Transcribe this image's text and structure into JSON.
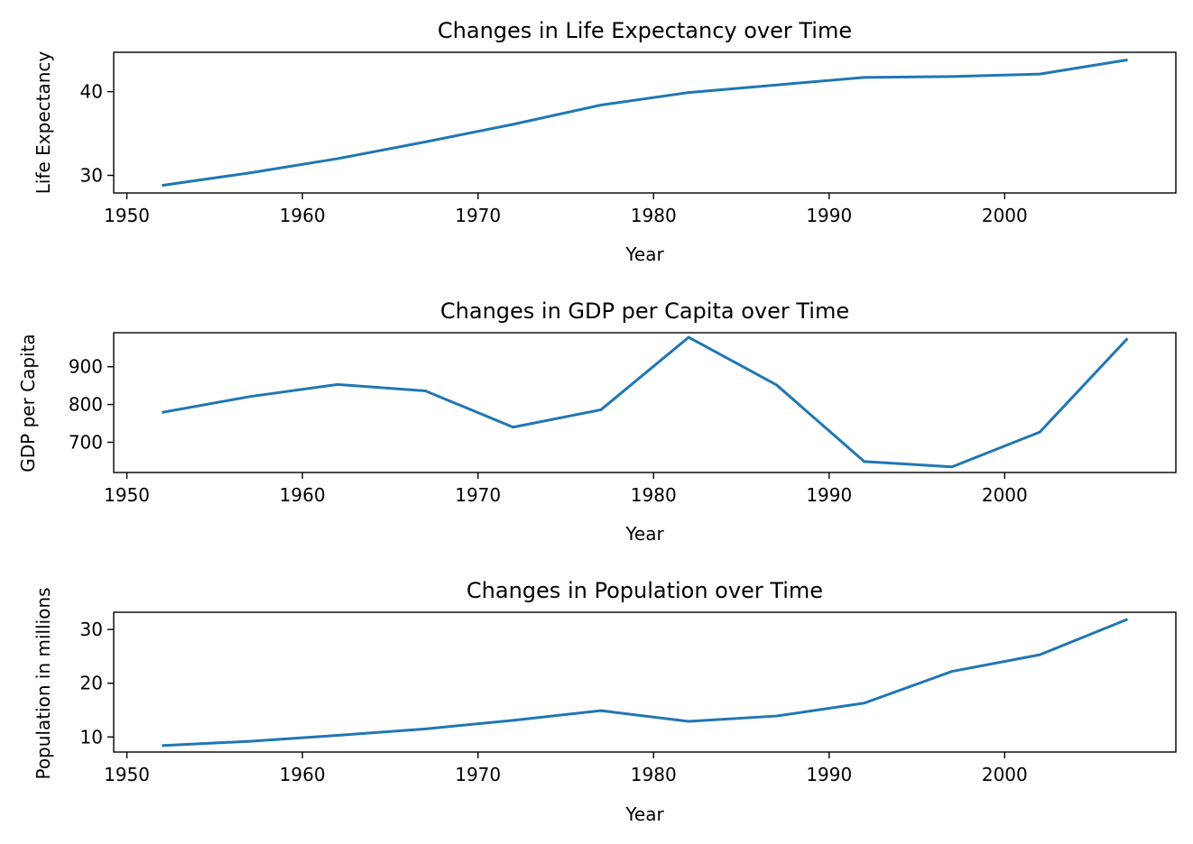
{
  "chart_data": [
    {
      "type": "line",
      "title": "Changes in Life Expectancy over Time",
      "xlabel": "Year",
      "ylabel": "Life Expectancy",
      "xlim": [
        1949.25,
        2009.75
      ],
      "ylim": [
        27.9,
        44.7
      ],
      "xticks": [
        1950,
        1960,
        1970,
        1980,
        1990,
        2000
      ],
      "yticks": [
        30,
        40
      ],
      "grid": false,
      "color": "#1f77b4",
      "x": [
        1952,
        1957,
        1962,
        1967,
        1972,
        1977,
        1982,
        1987,
        1992,
        1997,
        2002,
        2007
      ],
      "y": [
        28.8,
        30.3,
        32.0,
        34.0,
        36.1,
        38.4,
        39.9,
        40.8,
        41.7,
        41.8,
        42.1,
        43.8
      ]
    },
    {
      "type": "line",
      "title": "Changes in GDP per Capita over Time",
      "xlabel": "Year",
      "ylabel": "GDP per Capita",
      "xlim": [
        1949.25,
        2009.75
      ],
      "ylim": [
        620,
        990
      ],
      "xticks": [
        1950,
        1960,
        1970,
        1980,
        1990,
        2000
      ],
      "yticks": [
        700,
        800,
        900
      ],
      "grid": false,
      "color": "#1f77b4",
      "x": [
        1952,
        1957,
        1962,
        1967,
        1972,
        1977,
        1982,
        1987,
        1992,
        1997,
        2002,
        2007
      ],
      "y": [
        779,
        821,
        853,
        836,
        740,
        786,
        978,
        852,
        649,
        635,
        727,
        975
      ]
    },
    {
      "type": "line",
      "title": "Changes in Population over Time",
      "xlabel": "Year",
      "ylabel": "Population in millions",
      "xlim": [
        1949.25,
        2009.75
      ],
      "ylim": [
        7.2,
        33.2
      ],
      "xticks": [
        1950,
        1960,
        1970,
        1980,
        1990,
        2000
      ],
      "yticks": [
        10,
        20,
        30
      ],
      "grid": false,
      "color": "#1f77b4",
      "x": [
        1952,
        1957,
        1962,
        1967,
        1972,
        1977,
        1982,
        1987,
        1992,
        1997,
        2002,
        2007
      ],
      "y": [
        8.4,
        9.2,
        10.3,
        11.5,
        13.1,
        14.9,
        12.9,
        13.9,
        16.3,
        22.2,
        25.3,
        31.9
      ]
    }
  ]
}
